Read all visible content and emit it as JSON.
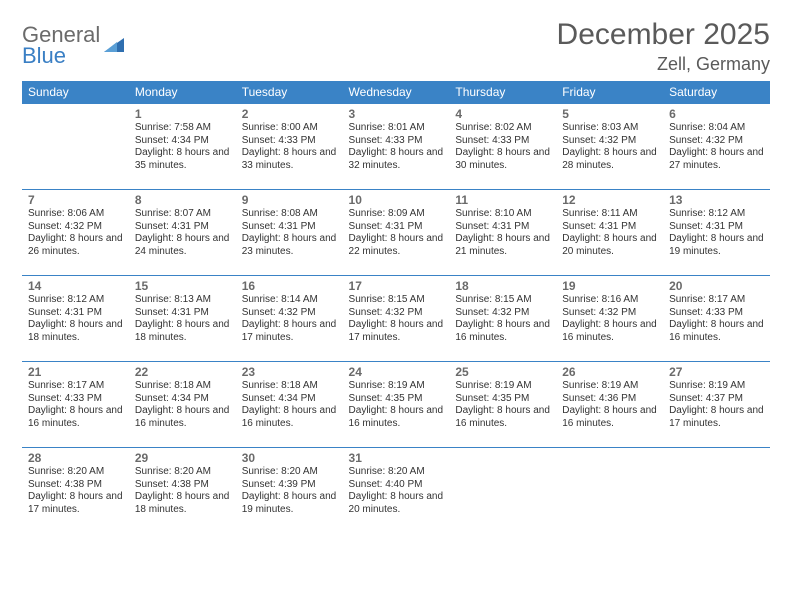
{
  "brand": {
    "general": "General",
    "blue": "Blue"
  },
  "title": "December 2025",
  "location": "Zell, Germany",
  "colors": {
    "header_bg": "#3a83c6",
    "header_text": "#ffffff",
    "border": "#3a83c6",
    "text": "#333333",
    "title_color": "#5a5a5a",
    "logo_gray": "#6b6b6b",
    "logo_blue": "#3a7fc4",
    "background": "#ffffff"
  },
  "layout": {
    "type": "table",
    "columns": 7,
    "rows": 5,
    "cell_fontsize": 10,
    "header_fontsize": 12,
    "title_fontsize": 30,
    "location_fontsize": 18
  },
  "weekdays": [
    "Sunday",
    "Monday",
    "Tuesday",
    "Wednesday",
    "Thursday",
    "Friday",
    "Saturday"
  ],
  "days": [
    {
      "n": 1,
      "sr": "7:58 AM",
      "ss": "4:34 PM",
      "dl": "8 hours and 35 minutes."
    },
    {
      "n": 2,
      "sr": "8:00 AM",
      "ss": "4:33 PM",
      "dl": "8 hours and 33 minutes."
    },
    {
      "n": 3,
      "sr": "8:01 AM",
      "ss": "4:33 PM",
      "dl": "8 hours and 32 minutes."
    },
    {
      "n": 4,
      "sr": "8:02 AM",
      "ss": "4:33 PM",
      "dl": "8 hours and 30 minutes."
    },
    {
      "n": 5,
      "sr": "8:03 AM",
      "ss": "4:32 PM",
      "dl": "8 hours and 28 minutes."
    },
    {
      "n": 6,
      "sr": "8:04 AM",
      "ss": "4:32 PM",
      "dl": "8 hours and 27 minutes."
    },
    {
      "n": 7,
      "sr": "8:06 AM",
      "ss": "4:32 PM",
      "dl": "8 hours and 26 minutes."
    },
    {
      "n": 8,
      "sr": "8:07 AM",
      "ss": "4:31 PM",
      "dl": "8 hours and 24 minutes."
    },
    {
      "n": 9,
      "sr": "8:08 AM",
      "ss": "4:31 PM",
      "dl": "8 hours and 23 minutes."
    },
    {
      "n": 10,
      "sr": "8:09 AM",
      "ss": "4:31 PM",
      "dl": "8 hours and 22 minutes."
    },
    {
      "n": 11,
      "sr": "8:10 AM",
      "ss": "4:31 PM",
      "dl": "8 hours and 21 minutes."
    },
    {
      "n": 12,
      "sr": "8:11 AM",
      "ss": "4:31 PM",
      "dl": "8 hours and 20 minutes."
    },
    {
      "n": 13,
      "sr": "8:12 AM",
      "ss": "4:31 PM",
      "dl": "8 hours and 19 minutes."
    },
    {
      "n": 14,
      "sr": "8:12 AM",
      "ss": "4:31 PM",
      "dl": "8 hours and 18 minutes."
    },
    {
      "n": 15,
      "sr": "8:13 AM",
      "ss": "4:31 PM",
      "dl": "8 hours and 18 minutes."
    },
    {
      "n": 16,
      "sr": "8:14 AM",
      "ss": "4:32 PM",
      "dl": "8 hours and 17 minutes."
    },
    {
      "n": 17,
      "sr": "8:15 AM",
      "ss": "4:32 PM",
      "dl": "8 hours and 17 minutes."
    },
    {
      "n": 18,
      "sr": "8:15 AM",
      "ss": "4:32 PM",
      "dl": "8 hours and 16 minutes."
    },
    {
      "n": 19,
      "sr": "8:16 AM",
      "ss": "4:32 PM",
      "dl": "8 hours and 16 minutes."
    },
    {
      "n": 20,
      "sr": "8:17 AM",
      "ss": "4:33 PM",
      "dl": "8 hours and 16 minutes."
    },
    {
      "n": 21,
      "sr": "8:17 AM",
      "ss": "4:33 PM",
      "dl": "8 hours and 16 minutes."
    },
    {
      "n": 22,
      "sr": "8:18 AM",
      "ss": "4:34 PM",
      "dl": "8 hours and 16 minutes."
    },
    {
      "n": 23,
      "sr": "8:18 AM",
      "ss": "4:34 PM",
      "dl": "8 hours and 16 minutes."
    },
    {
      "n": 24,
      "sr": "8:19 AM",
      "ss": "4:35 PM",
      "dl": "8 hours and 16 minutes."
    },
    {
      "n": 25,
      "sr": "8:19 AM",
      "ss": "4:35 PM",
      "dl": "8 hours and 16 minutes."
    },
    {
      "n": 26,
      "sr": "8:19 AM",
      "ss": "4:36 PM",
      "dl": "8 hours and 16 minutes."
    },
    {
      "n": 27,
      "sr": "8:19 AM",
      "ss": "4:37 PM",
      "dl": "8 hours and 17 minutes."
    },
    {
      "n": 28,
      "sr": "8:20 AM",
      "ss": "4:38 PM",
      "dl": "8 hours and 17 minutes."
    },
    {
      "n": 29,
      "sr": "8:20 AM",
      "ss": "4:38 PM",
      "dl": "8 hours and 18 minutes."
    },
    {
      "n": 30,
      "sr": "8:20 AM",
      "ss": "4:39 PM",
      "dl": "8 hours and 19 minutes."
    },
    {
      "n": 31,
      "sr": "8:20 AM",
      "ss": "4:40 PM",
      "dl": "8 hours and 20 minutes."
    }
  ],
  "labels": {
    "sunrise": "Sunrise:",
    "sunset": "Sunset:",
    "daylight": "Daylight:"
  },
  "first_weekday_index": 1
}
